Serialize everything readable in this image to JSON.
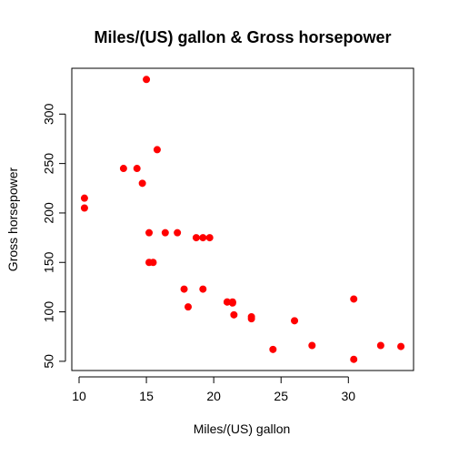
{
  "chart_data": {
    "type": "scatter",
    "title": "Miles/(US) gallon & Gross horsepower",
    "xlabel": "Miles/(US) gallon",
    "ylabel": "Gross horsepower",
    "xlim": [
      10.4,
      33.9
    ],
    "ylim": [
      52,
      335
    ],
    "xticks": [
      10,
      15,
      20,
      25,
      30
    ],
    "yticks": [
      50,
      100,
      150,
      200,
      250,
      300
    ],
    "grid": false,
    "legend": "none",
    "point_color": "#FF0000",
    "points": [
      {
        "x": 21.0,
        "y": 110
      },
      {
        "x": 21.0,
        "y": 110
      },
      {
        "x": 22.8,
        "y": 93
      },
      {
        "x": 21.4,
        "y": 110
      },
      {
        "x": 18.7,
        "y": 175
      },
      {
        "x": 18.1,
        "y": 105
      },
      {
        "x": 14.3,
        "y": 245
      },
      {
        "x": 24.4,
        "y": 62
      },
      {
        "x": 22.8,
        "y": 95
      },
      {
        "x": 19.2,
        "y": 123
      },
      {
        "x": 17.8,
        "y": 123
      },
      {
        "x": 16.4,
        "y": 180
      },
      {
        "x": 17.3,
        "y": 180
      },
      {
        "x": 15.2,
        "y": 180
      },
      {
        "x": 10.4,
        "y": 205
      },
      {
        "x": 10.4,
        "y": 215
      },
      {
        "x": 14.7,
        "y": 230
      },
      {
        "x": 32.4,
        "y": 66
      },
      {
        "x": 30.4,
        "y": 52
      },
      {
        "x": 33.9,
        "y": 65
      },
      {
        "x": 21.5,
        "y": 97
      },
      {
        "x": 15.5,
        "y": 150
      },
      {
        "x": 15.2,
        "y": 150
      },
      {
        "x": 13.3,
        "y": 245
      },
      {
        "x": 19.2,
        "y": 175
      },
      {
        "x": 27.3,
        "y": 66
      },
      {
        "x": 26.0,
        "y": 91
      },
      {
        "x": 30.4,
        "y": 113
      },
      {
        "x": 15.8,
        "y": 264
      },
      {
        "x": 19.7,
        "y": 175
      },
      {
        "x": 15.0,
        "y": 335
      },
      {
        "x": 21.4,
        "y": 109
      }
    ]
  }
}
